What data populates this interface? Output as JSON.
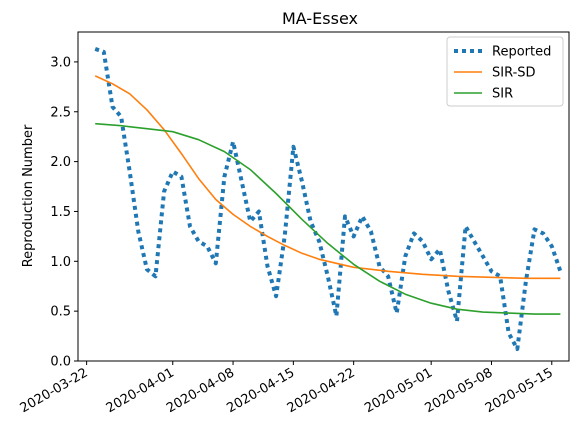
{
  "chart_data": {
    "type": "line",
    "title": "MA-Essex",
    "xlabel": "",
    "ylabel": "Reproduction Number",
    "xlim": [
      "2020-03-21",
      "2020-05-17"
    ],
    "ylim": [
      0.0,
      3.3
    ],
    "x_ticks": [
      "2020-03-22",
      "2020-04-01",
      "2020-04-08",
      "2020-04-15",
      "2020-04-22",
      "2020-05-01",
      "2020-05-08",
      "2020-05-15"
    ],
    "y_ticks": [
      "0.0",
      "0.5",
      "1.0",
      "1.5",
      "2.0",
      "2.5",
      "3.0"
    ],
    "grid": false,
    "legend_position": "top-right",
    "series": [
      {
        "name": "Reported",
        "color": "#1f77b4",
        "style": "dotted",
        "points": [
          [
            "2020-03-23",
            3.13
          ],
          [
            "2020-03-24",
            3.1
          ],
          [
            "2020-03-25",
            2.55
          ],
          [
            "2020-03-26",
            2.45
          ],
          [
            "2020-03-27",
            1.9
          ],
          [
            "2020-03-28",
            1.3
          ],
          [
            "2020-03-29",
            0.92
          ],
          [
            "2020-03-30",
            0.85
          ],
          [
            "2020-03-31",
            1.7
          ],
          [
            "2020-04-01",
            1.9
          ],
          [
            "2020-04-02",
            1.85
          ],
          [
            "2020-04-03",
            1.35
          ],
          [
            "2020-04-04",
            1.2
          ],
          [
            "2020-04-05",
            1.15
          ],
          [
            "2020-04-06",
            0.98
          ],
          [
            "2020-04-07",
            1.85
          ],
          [
            "2020-04-08",
            2.2
          ],
          [
            "2020-04-09",
            1.8
          ],
          [
            "2020-04-10",
            1.4
          ],
          [
            "2020-04-11",
            1.5
          ],
          [
            "2020-04-12",
            0.95
          ],
          [
            "2020-04-13",
            0.65
          ],
          [
            "2020-04-14",
            1.25
          ],
          [
            "2020-04-15",
            2.15
          ],
          [
            "2020-04-16",
            1.8
          ],
          [
            "2020-04-17",
            1.4
          ],
          [
            "2020-04-18",
            1.2
          ],
          [
            "2020-04-19",
            0.85
          ],
          [
            "2020-04-20",
            0.45
          ],
          [
            "2020-04-21",
            1.45
          ],
          [
            "2020-04-22",
            1.25
          ],
          [
            "2020-04-23",
            1.45
          ],
          [
            "2020-04-24",
            1.3
          ],
          [
            "2020-04-25",
            0.95
          ],
          [
            "2020-04-26",
            0.85
          ],
          [
            "2020-04-27",
            0.48
          ],
          [
            "2020-04-28",
            1.05
          ],
          [
            "2020-04-29",
            1.28
          ],
          [
            "2020-04-30",
            1.2
          ],
          [
            "2020-05-01",
            1.02
          ],
          [
            "2020-05-02",
            1.12
          ],
          [
            "2020-05-03",
            0.7
          ],
          [
            "2020-05-04",
            0.4
          ],
          [
            "2020-05-05",
            1.35
          ],
          [
            "2020-05-06",
            1.2
          ],
          [
            "2020-05-07",
            1.05
          ],
          [
            "2020-05-08",
            0.9
          ],
          [
            "2020-05-09",
            0.85
          ],
          [
            "2020-05-10",
            0.28
          ],
          [
            "2020-05-11",
            0.12
          ],
          [
            "2020-05-12",
            0.8
          ],
          [
            "2020-05-13",
            1.32
          ],
          [
            "2020-05-14",
            1.28
          ],
          [
            "2020-05-15",
            1.15
          ],
          [
            "2020-05-16",
            0.9
          ]
        ]
      },
      {
        "name": "SIR-SD",
        "color": "#ff7f0e",
        "style": "solid",
        "points": [
          [
            "2020-03-23",
            2.86
          ],
          [
            "2020-03-25",
            2.78
          ],
          [
            "2020-03-27",
            2.68
          ],
          [
            "2020-03-29",
            2.52
          ],
          [
            "2020-03-31",
            2.32
          ],
          [
            "2020-04-02",
            2.08
          ],
          [
            "2020-04-04",
            1.83
          ],
          [
            "2020-04-06",
            1.62
          ],
          [
            "2020-04-08",
            1.47
          ],
          [
            "2020-04-10",
            1.35
          ],
          [
            "2020-04-12",
            1.25
          ],
          [
            "2020-04-14",
            1.16
          ],
          [
            "2020-04-16",
            1.08
          ],
          [
            "2020-04-18",
            1.02
          ],
          [
            "2020-04-20",
            0.98
          ],
          [
            "2020-04-22",
            0.94
          ],
          [
            "2020-04-26",
            0.9
          ],
          [
            "2020-04-30",
            0.87
          ],
          [
            "2020-05-04",
            0.85
          ],
          [
            "2020-05-08",
            0.84
          ],
          [
            "2020-05-12",
            0.83
          ],
          [
            "2020-05-16",
            0.83
          ]
        ]
      },
      {
        "name": "SIR",
        "color": "#2ca02c",
        "style": "solid",
        "points": [
          [
            "2020-03-23",
            2.38
          ],
          [
            "2020-03-26",
            2.36
          ],
          [
            "2020-03-29",
            2.33
          ],
          [
            "2020-04-01",
            2.3
          ],
          [
            "2020-04-04",
            2.22
          ],
          [
            "2020-04-07",
            2.1
          ],
          [
            "2020-04-10",
            1.92
          ],
          [
            "2020-04-13",
            1.68
          ],
          [
            "2020-04-16",
            1.42
          ],
          [
            "2020-04-19",
            1.18
          ],
          [
            "2020-04-22",
            0.97
          ],
          [
            "2020-04-25",
            0.8
          ],
          [
            "2020-04-28",
            0.67
          ],
          [
            "2020-05-01",
            0.58
          ],
          [
            "2020-05-04",
            0.52
          ],
          [
            "2020-05-07",
            0.49
          ],
          [
            "2020-05-10",
            0.48
          ],
          [
            "2020-05-13",
            0.47
          ],
          [
            "2020-05-16",
            0.47
          ]
        ]
      }
    ]
  }
}
